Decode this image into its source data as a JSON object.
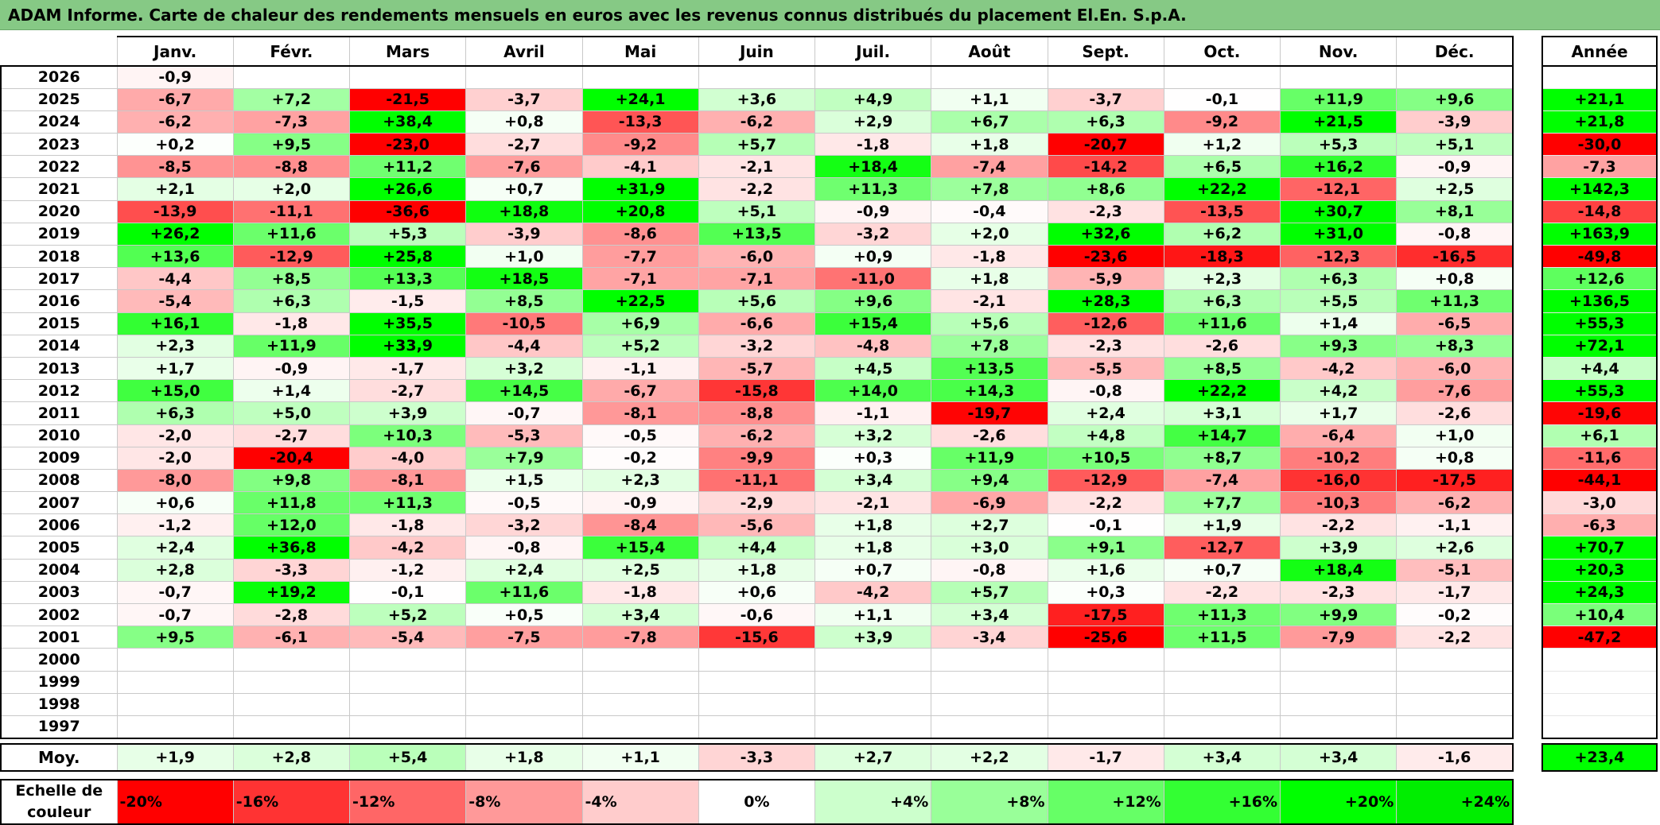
{
  "title": "ADAM Informe. Carte de chaleur des rendements mensuels en euros avec les revenus connus distribués du placement El.En. S.p.A.",
  "months": [
    "Janv.",
    "Févr.",
    "Mars",
    "Avril",
    "Mai",
    "Juin",
    "Juil.",
    "Août",
    "Sept.",
    "Oct.",
    "Nov.",
    "Déc."
  ],
  "year_header": "Année",
  "avg_label": "Moy.",
  "scale_label": "Echelle de couleur",
  "scale": [
    {
      "label": "-20%",
      "color": "#ff0000"
    },
    {
      "label": "-16%",
      "color": "#ff3333"
    },
    {
      "label": "-12%",
      "color": "#ff6666"
    },
    {
      "label": "-8%",
      "color": "#ff9999"
    },
    {
      "label": "-4%",
      "color": "#ffcccc"
    },
    {
      "label": "0%",
      "color": "#ffffff"
    },
    {
      "label": "+4%",
      "color": "#ccffcc"
    },
    {
      "label": "+8%",
      "color": "#99ff99"
    },
    {
      "label": "+12%",
      "color": "#66ff66"
    },
    {
      "label": "+16%",
      "color": "#33ff33"
    },
    {
      "label": "+20%",
      "color": "#00ff00"
    },
    {
      "label": "+24%",
      "color": "#00ee00"
    }
  ],
  "chart_data": {
    "type": "heatmap",
    "title": "ADAM Informe. Carte de chaleur des rendements mensuels en euros avec les revenus connus distribués du placement El.En. S.p.A.",
    "rows": [
      {
        "year": "2026",
        "values": [
          "-0,9",
          "",
          "",
          "",
          "",
          "",
          "",
          "",
          "",
          "",
          "",
          ""
        ],
        "annual": ""
      },
      {
        "year": "2025",
        "values": [
          "-6,7",
          "+7,2",
          "-21,5",
          "-3,7",
          "+24,1",
          "+3,6",
          "+4,9",
          "+1,1",
          "-3,7",
          "-0,1",
          "+11,9",
          "+9,6"
        ],
        "annual": "+21,1"
      },
      {
        "year": "2024",
        "values": [
          "-6,2",
          "-7,3",
          "+38,4",
          "+0,8",
          "-13,3",
          "-6,2",
          "+2,9",
          "+6,7",
          "+6,3",
          "-9,2",
          "+21,5",
          "-3,9"
        ],
        "annual": "+21,8"
      },
      {
        "year": "2023",
        "values": [
          "+0,2",
          "+9,5",
          "-23,0",
          "-2,7",
          "-9,2",
          "+5,7",
          "-1,8",
          "+1,8",
          "-20,7",
          "+1,2",
          "+5,3",
          "+5,1"
        ],
        "annual": "-30,0"
      },
      {
        "year": "2022",
        "values": [
          "-8,5",
          "-8,8",
          "+11,2",
          "-7,6",
          "-4,1",
          "-2,1",
          "+18,4",
          "-7,4",
          "-14,2",
          "+6,5",
          "+16,2",
          "-0,9"
        ],
        "annual": "-7,3"
      },
      {
        "year": "2021",
        "values": [
          "+2,1",
          "+2,0",
          "+26,6",
          "+0,7",
          "+31,9",
          "-2,2",
          "+11,3",
          "+7,8",
          "+8,6",
          "+22,2",
          "-12,1",
          "+2,5"
        ],
        "annual": "+142,3"
      },
      {
        "year": "2020",
        "values": [
          "-13,9",
          "-11,1",
          "-36,6",
          "+18,8",
          "+20,8",
          "+5,1",
          "-0,9",
          "-0,4",
          "-2,3",
          "-13,5",
          "+30,7",
          "+8,1"
        ],
        "annual": "-14,8"
      },
      {
        "year": "2019",
        "values": [
          "+26,2",
          "+11,6",
          "+5,3",
          "-3,9",
          "-8,6",
          "+13,5",
          "-3,2",
          "+2,0",
          "+32,6",
          "+6,2",
          "+31,0",
          "-0,8"
        ],
        "annual": "+163,9"
      },
      {
        "year": "2018",
        "values": [
          "+13,6",
          "-12,9",
          "+25,8",
          "+1,0",
          "-7,7",
          "-6,0",
          "+0,9",
          "-1,8",
          "-23,6",
          "-18,3",
          "-12,3",
          "-16,5"
        ],
        "annual": "-49,8"
      },
      {
        "year": "2017",
        "values": [
          "-4,4",
          "+8,5",
          "+13,3",
          "+18,5",
          "-7,1",
          "-7,1",
          "-11,0",
          "+1,8",
          "-5,9",
          "+2,3",
          "+6,3",
          "+0,8"
        ],
        "annual": "+12,6"
      },
      {
        "year": "2016",
        "values": [
          "-5,4",
          "+6,3",
          "-1,5",
          "+8,5",
          "+22,5",
          "+5,6",
          "+9,6",
          "-2,1",
          "+28,3",
          "+6,3",
          "+5,5",
          "+11,3"
        ],
        "annual": "+136,5"
      },
      {
        "year": "2015",
        "values": [
          "+16,1",
          "-1,8",
          "+35,5",
          "-10,5",
          "+6,9",
          "-6,6",
          "+15,4",
          "+5,6",
          "-12,6",
          "+11,6",
          "+1,4",
          "-6,5"
        ],
        "annual": "+55,3"
      },
      {
        "year": "2014",
        "values": [
          "+2,3",
          "+11,9",
          "+33,9",
          "-4,4",
          "+5,2",
          "-3,2",
          "-4,8",
          "+7,8",
          "-2,3",
          "-2,6",
          "+9,3",
          "+8,3"
        ],
        "annual": "+72,1"
      },
      {
        "year": "2013",
        "values": [
          "+1,7",
          "-0,9",
          "-1,7",
          "+3,2",
          "-1,1",
          "-5,7",
          "+4,5",
          "+13,5",
          "-5,5",
          "+8,5",
          "-4,2",
          "-6,0"
        ],
        "annual": "+4,4"
      },
      {
        "year": "2012",
        "values": [
          "+15,0",
          "+1,4",
          "-2,7",
          "+14,5",
          "-6,7",
          "-15,8",
          "+14,0",
          "+14,3",
          "-0,8",
          "+22,2",
          "+4,2",
          "-7,6"
        ],
        "annual": "+55,3"
      },
      {
        "year": "2011",
        "values": [
          "+6,3",
          "+5,0",
          "+3,9",
          "-0,7",
          "-8,1",
          "-8,8",
          "-1,1",
          "-19,7",
          "+2,4",
          "+3,1",
          "+1,7",
          "-2,6"
        ],
        "annual": "-19,6"
      },
      {
        "year": "2010",
        "values": [
          "-2,0",
          "-2,7",
          "+10,3",
          "-5,3",
          "-0,5",
          "-6,2",
          "+3,2",
          "-2,6",
          "+4,8",
          "+14,7",
          "-6,4",
          "+1,0"
        ],
        "annual": "+6,1"
      },
      {
        "year": "2009",
        "values": [
          "-2,0",
          "-20,4",
          "-4,0",
          "+7,9",
          "-0,2",
          "-9,9",
          "+0,3",
          "+11,9",
          "+10,5",
          "+8,7",
          "-10,2",
          "+0,8"
        ],
        "annual": "-11,6"
      },
      {
        "year": "2008",
        "values": [
          "-8,0",
          "+9,8",
          "-8,1",
          "+1,5",
          "+2,3",
          "-11,1",
          "+3,4",
          "+9,4",
          "-12,9",
          "-7,4",
          "-16,0",
          "-17,5"
        ],
        "annual": "-44,1"
      },
      {
        "year": "2007",
        "values": [
          "+0,6",
          "+11,8",
          "+11,3",
          "-0,5",
          "-0,9",
          "-2,9",
          "-2,1",
          "-6,9",
          "-2,2",
          "+7,7",
          "-10,3",
          "-6,2"
        ],
        "annual": "-3,0"
      },
      {
        "year": "2006",
        "values": [
          "-1,2",
          "+12,0",
          "-1,8",
          "-3,2",
          "-8,4",
          "-5,6",
          "+1,8",
          "+2,7",
          "-0,1",
          "+1,9",
          "-2,2",
          "-1,1"
        ],
        "annual": "-6,3"
      },
      {
        "year": "2005",
        "values": [
          "+2,4",
          "+36,8",
          "-4,2",
          "-0,8",
          "+15,4",
          "+4,4",
          "+1,8",
          "+3,0",
          "+9,1",
          "-12,7",
          "+3,9",
          "+2,6"
        ],
        "annual": "+70,7"
      },
      {
        "year": "2004",
        "values": [
          "+2,8",
          "-3,3",
          "-1,2",
          "+2,4",
          "+2,5",
          "+1,8",
          "+0,7",
          "-0,8",
          "+1,6",
          "+0,7",
          "+18,4",
          "-5,1"
        ],
        "annual": "+20,3"
      },
      {
        "year": "2003",
        "values": [
          "-0,7",
          "+19,2",
          "-0,1",
          "+11,6",
          "-1,8",
          "+0,6",
          "-4,2",
          "+5,7",
          "+0,3",
          "-2,2",
          "-2,3",
          "-1,7"
        ],
        "annual": "+24,3"
      },
      {
        "year": "2002",
        "values": [
          "-0,7",
          "-2,8",
          "+5,2",
          "+0,5",
          "+3,4",
          "-0,6",
          "+1,1",
          "+3,4",
          "-17,5",
          "+11,3",
          "+9,9",
          "-0,2"
        ],
        "annual": "+10,4"
      },
      {
        "year": "2001",
        "values": [
          "+9,5",
          "-6,1",
          "-5,4",
          "-7,5",
          "-7,8",
          "-15,6",
          "+3,9",
          "-3,4",
          "-25,6",
          "+11,5",
          "-7,9",
          "-2,2"
        ],
        "annual": "-47,2"
      },
      {
        "year": "2000",
        "values": [
          "",
          "",
          "",
          "",
          "",
          "",
          "",
          "",
          "",
          "",
          "",
          ""
        ],
        "annual": ""
      },
      {
        "year": "1999",
        "values": [
          "",
          "",
          "",
          "",
          "",
          "",
          "",
          "",
          "",
          "",
          "",
          ""
        ],
        "annual": ""
      },
      {
        "year": "1998",
        "values": [
          "",
          "",
          "",
          "",
          "",
          "",
          "",
          "",
          "",
          "",
          "",
          ""
        ],
        "annual": ""
      },
      {
        "year": "1997",
        "values": [
          "",
          "",
          "",
          "",
          "",
          "",
          "",
          "",
          "",
          "",
          "",
          ""
        ],
        "annual": ""
      }
    ],
    "average": {
      "values": [
        "+1,9",
        "+2,8",
        "+5,4",
        "+1,8",
        "+1,1",
        "-3,3",
        "+2,7",
        "+2,2",
        "-1,7",
        "+3,4",
        "+3,4",
        "-1,6"
      ],
      "annual": "+23,4"
    }
  }
}
